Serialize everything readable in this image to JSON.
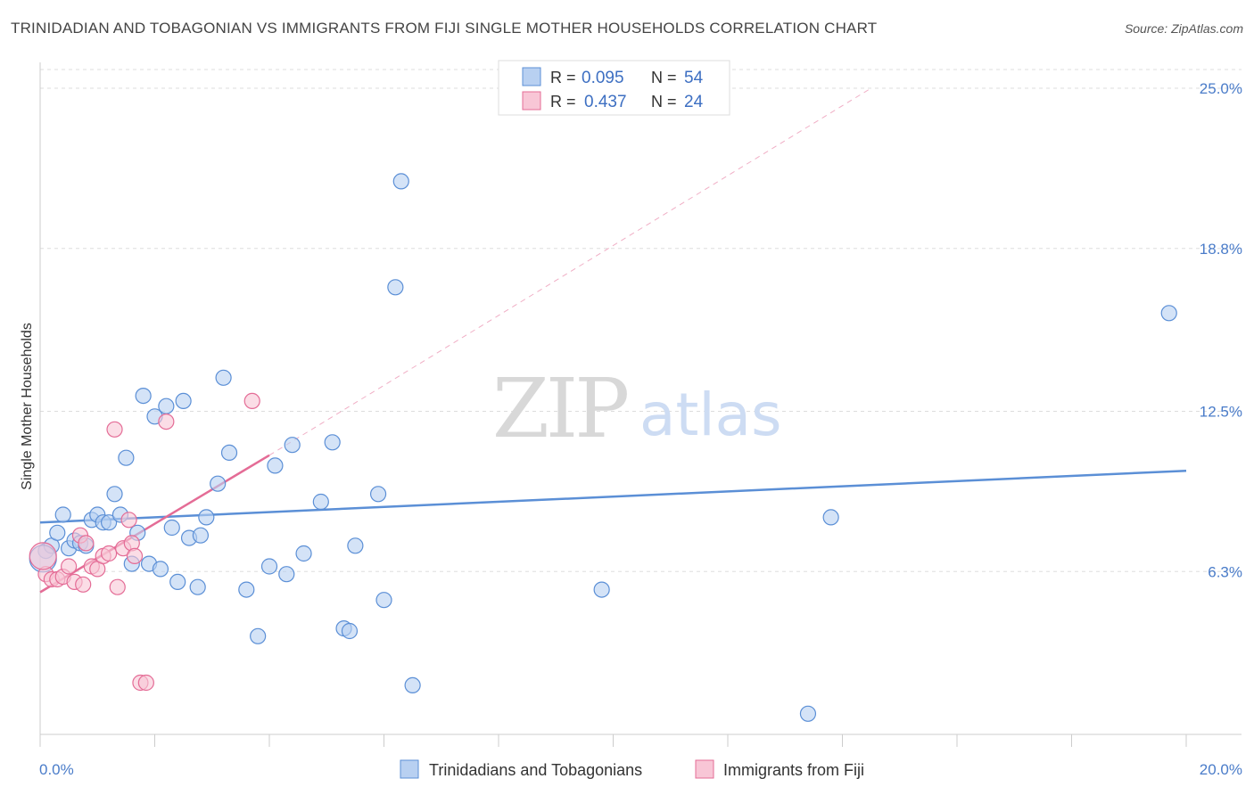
{
  "chart_data": {
    "type": "scatter",
    "title": "TRINIDADIAN AND TOBAGONIAN VS IMMIGRANTS FROM FIJI SINGLE MOTHER HOUSEHOLDS CORRELATION CHART",
    "source": "Source: ZipAtlas.com",
    "ylabel": "Single Mother Households",
    "xlabel": "",
    "xlim": [
      0,
      20
    ],
    "ylim": [
      0,
      26
    ],
    "x_tick_labels": [
      "0.0%",
      "20.0%"
    ],
    "y_ticks": [
      6.3,
      12.5,
      18.8,
      25.0
    ],
    "y_tick_labels": [
      "6.3%",
      "12.5%",
      "18.8%",
      "25.0%"
    ],
    "grid": true,
    "legend_position": "top-center",
    "watermark": {
      "left": "ZIP",
      "right": "atlas"
    },
    "legend": {
      "rows": [
        {
          "r_label": "R =",
          "r_value": "0.095",
          "n_label": "N =",
          "n_value": "54"
        },
        {
          "r_label": "R =",
          "r_value": "0.437",
          "n_label": "N =",
          "n_value": "24"
        }
      ]
    },
    "series": [
      {
        "name": "Trinidadians and Tobagonians",
        "color": "#5b8fd6",
        "fill": "#b8d0f1",
        "points": [
          [
            0.1,
            7.1
          ],
          [
            0.2,
            7.3
          ],
          [
            0.3,
            7.8
          ],
          [
            0.4,
            8.5
          ],
          [
            0.5,
            7.2
          ],
          [
            0.6,
            7.5
          ],
          [
            0.7,
            7.4
          ],
          [
            0.8,
            7.3
          ],
          [
            0.9,
            8.3
          ],
          [
            1.0,
            8.5
          ],
          [
            1.1,
            8.2
          ],
          [
            1.2,
            8.2
          ],
          [
            1.3,
            9.3
          ],
          [
            1.4,
            8.5
          ],
          [
            1.5,
            10.7
          ],
          [
            1.6,
            6.6
          ],
          [
            1.7,
            7.8
          ],
          [
            1.8,
            13.1
          ],
          [
            1.9,
            6.6
          ],
          [
            2.0,
            12.3
          ],
          [
            2.1,
            6.4
          ],
          [
            2.2,
            12.7
          ],
          [
            2.3,
            8.0
          ],
          [
            2.5,
            12.9
          ],
          [
            2.6,
            7.6
          ],
          [
            2.4,
            5.9
          ],
          [
            2.8,
            7.7
          ],
          [
            2.75,
            5.7
          ],
          [
            2.9,
            8.4
          ],
          [
            3.1,
            9.7
          ],
          [
            3.2,
            13.8
          ],
          [
            3.3,
            10.9
          ],
          [
            3.6,
            5.6
          ],
          [
            3.8,
            3.8
          ],
          [
            4.0,
            6.5
          ],
          [
            4.1,
            10.4
          ],
          [
            4.3,
            6.2
          ],
          [
            4.4,
            11.2
          ],
          [
            4.6,
            7.0
          ],
          [
            4.9,
            9.0
          ],
          [
            5.1,
            11.3
          ],
          [
            5.3,
            4.1
          ],
          [
            5.4,
            4.0
          ],
          [
            5.5,
            7.3
          ],
          [
            5.9,
            9.3
          ],
          [
            6.0,
            5.2
          ],
          [
            6.2,
            17.3
          ],
          [
            6.3,
            21.4
          ],
          [
            6.5,
            1.9
          ],
          [
            9.8,
            5.6
          ],
          [
            13.4,
            0.8
          ],
          [
            13.8,
            8.4
          ],
          [
            19.7,
            16.3
          ],
          [
            0.05,
            6.8
          ]
        ],
        "trend": {
          "x": [
            0,
            20
          ],
          "y": [
            8.2,
            10.2
          ],
          "dashed_extension": false
        }
      },
      {
        "name": "Immigrants from Fiji",
        "color": "#e46c96",
        "fill": "#f8c6d6",
        "points": [
          [
            0.1,
            6.2
          ],
          [
            0.2,
            6.0
          ],
          [
            0.3,
            6.0
          ],
          [
            0.4,
            6.1
          ],
          [
            0.5,
            6.5
          ],
          [
            0.6,
            5.9
          ],
          [
            0.7,
            7.7
          ],
          [
            0.75,
            5.8
          ],
          [
            0.8,
            7.4
          ],
          [
            0.9,
            6.5
          ],
          [
            1.0,
            6.4
          ],
          [
            1.1,
            6.9
          ],
          [
            1.2,
            7.0
          ],
          [
            1.3,
            11.8
          ],
          [
            1.35,
            5.7
          ],
          [
            1.45,
            7.2
          ],
          [
            1.55,
            8.3
          ],
          [
            1.6,
            7.4
          ],
          [
            1.65,
            6.9
          ],
          [
            1.75,
            2.0
          ],
          [
            1.85,
            2.0
          ],
          [
            2.2,
            12.1
          ],
          [
            3.7,
            12.9
          ],
          [
            0.05,
            6.9
          ]
        ],
        "trend": {
          "x": [
            0,
            4.0
          ],
          "y": [
            5.5,
            10.8
          ],
          "dashed_extension": {
            "x": [
              4.0,
              14.5
            ],
            "y": [
              10.8,
              25.0
            ]
          }
        }
      }
    ]
  }
}
